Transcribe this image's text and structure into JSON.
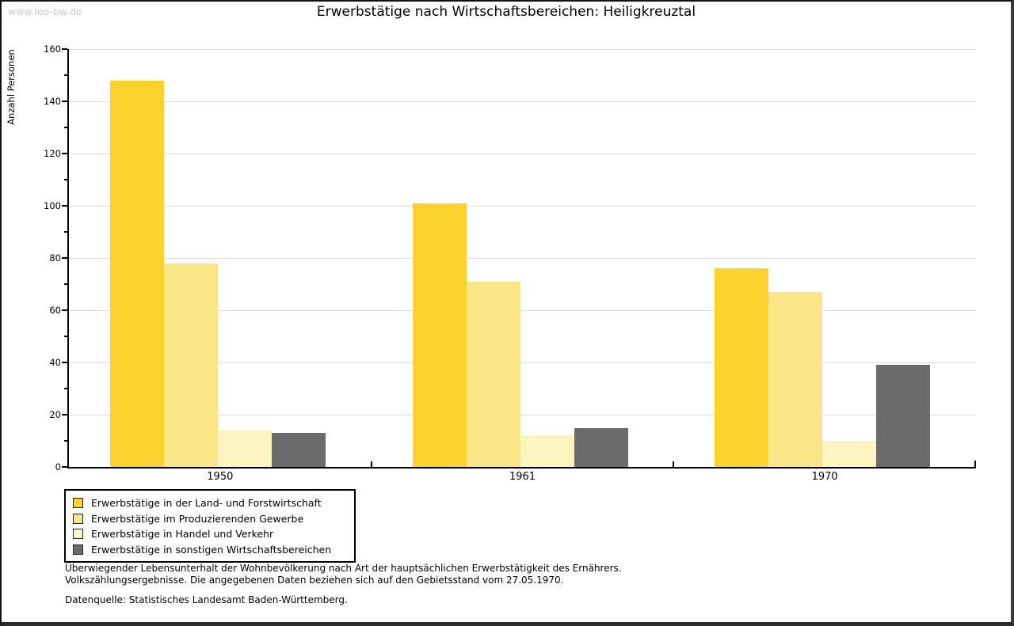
{
  "watermark": "www.leo-bw.de",
  "title": "Erwerbstätige nach Wirtschaftsbereichen: Heiligkreuztal",
  "chart_data": {
    "type": "bar",
    "title": "Erwerbstätige nach Wirtschaftsbereichen: Heiligkreuztal",
    "xlabel": "",
    "ylabel": "Anzahl Personen",
    "categories": [
      "1950",
      "1961",
      "1970"
    ],
    "series": [
      {
        "name": "Erwerbstätige in der Land- und Forstwirtschaft",
        "color": "#fcd32e",
        "values": [
          148,
          101,
          76
        ]
      },
      {
        "name": "Erwerbstätige im Produzierenden Gewerbe",
        "color": "#fbe687",
        "values": [
          78,
          71,
          67
        ]
      },
      {
        "name": "Erwerbstätige in Handel und Verkehr",
        "color": "#fcf4c0",
        "values": [
          14,
          12,
          10
        ]
      },
      {
        "name": "Erwerbstätige in sonstigen Wirtschaftsbereichen",
        "color": "#6b6b6b",
        "values": [
          13,
          15,
          39
        ]
      }
    ],
    "ylim": [
      0,
      160
    ],
    "yticks": [
      0,
      20,
      40,
      60,
      80,
      100,
      120,
      140,
      160
    ],
    "minor_tick_interval": 10,
    "grid": true,
    "legend_position": "bottom-left"
  },
  "footnotes": {
    "line1": "Überwiegender Lebensunterhalt der Wohnbevölkerung nach Art der hauptsächlichen Erwerbstätigkeit des Ernährers.",
    "line2": "Volkszählungsergebnisse. Die angegebenen Daten beziehen sich auf den Gebietsstand vom 27.05.1970.",
    "source": "Datenquelle: Statistisches Landesamt Baden-Württemberg."
  }
}
